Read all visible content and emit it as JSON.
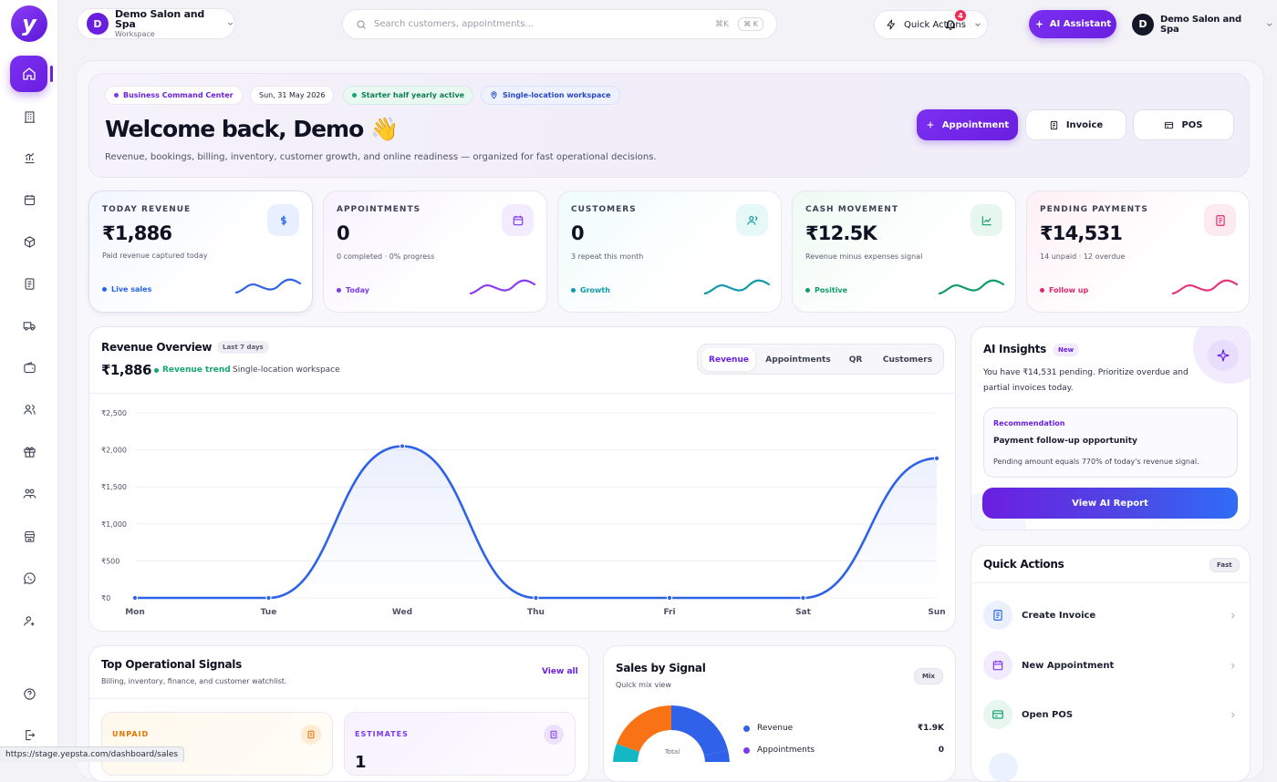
{
  "brand": {
    "logo_letter": "y",
    "accent": "#6a1fe0"
  },
  "workspace": {
    "avatar": "D",
    "name": "Demo Salon and Spa",
    "type": "Workspace"
  },
  "search": {
    "placeholder": "Search customers, appointments...",
    "shortcut": "⌘K",
    "shortcut_badge": "⌘ K"
  },
  "topbar": {
    "quick_actions": "Quick Actions",
    "notifications": "4",
    "ai_assistant": "AI Assistant",
    "user_avatar": "D",
    "user_name": "Demo Salon and Spa"
  },
  "sidebar": {
    "items": [
      "home-icon",
      "building-icon",
      "reports-icon",
      "calendar-icon",
      "package-icon",
      "document-icon",
      "truck-icon",
      "wallet-icon",
      "users-icon",
      "gift-icon",
      "team-icon",
      "store-icon",
      "whatsapp-icon",
      "user-settings-icon"
    ],
    "bottom": [
      "help-icon",
      "logout-icon"
    ]
  },
  "hero": {
    "chips": {
      "command": "Business Command Center",
      "date": "Sun, 31 May 2026",
      "plan": "Starter half yearly active",
      "location": "Single-location workspace"
    },
    "title": "Welcome back, Demo",
    "emoji": "👋",
    "subtitle": "Revenue, bookings, billing, inventory, customer growth, and online readiness — organized for fast operational decisions.",
    "buttons": {
      "appointment": "Appointment",
      "invoice": "Invoice",
      "pos": "POS"
    }
  },
  "kpis": [
    {
      "label": "TODAY REVENUE",
      "value": "₹1,886",
      "sub": "Paid revenue captured today",
      "tag": "Live sales",
      "color": "#2563eb",
      "icon": "rupee-icon"
    },
    {
      "label": "APPOINTMENTS",
      "value": "0",
      "sub": "0 completed · 0% progress",
      "tag": "Today",
      "color": "#7c3aed",
      "icon": "calendar-icon"
    },
    {
      "label": "CUSTOMERS",
      "value": "0",
      "sub": "3 repeat this month",
      "tag": "Growth",
      "color": "#0e9aa7",
      "icon": "user-icon"
    },
    {
      "label": "CASH MOVEMENT",
      "value": "₹12.5K",
      "sub": "Revenue minus expenses signal",
      "tag": "Positive",
      "color": "#0f9a6e",
      "icon": "trend-chart-icon"
    },
    {
      "label": "PENDING PAYMENTS",
      "value": "₹14,531",
      "sub": "14 unpaid · 12 overdue",
      "tag": "Follow up",
      "color": "#e0286f",
      "icon": "receipt-icon"
    }
  ],
  "revenue": {
    "title": "Revenue Overview",
    "range": "Last 7 days",
    "total": "₹1,886",
    "trend": "Revenue trend",
    "scope": "Single-location workspace",
    "tabs": [
      "Revenue",
      "Appointments",
      "QR",
      "Customers"
    ]
  },
  "chart_data": {
    "type": "line",
    "categories": [
      "Mon",
      "Tue",
      "Wed",
      "Thu",
      "Fri",
      "Sat",
      "Sun"
    ],
    "values": [
      0,
      0,
      2050,
      0,
      0,
      0,
      1886
    ],
    "ylim": [
      0,
      2500
    ],
    "yticks": [
      "₹0",
      "₹500",
      "₹1,000",
      "₹1,500",
      "₹2,000",
      "₹2,500"
    ],
    "grid": true,
    "color": "#2f62e8"
  },
  "ai": {
    "title": "AI Insights",
    "badge": "New",
    "desc": "You have ₹14,531 pending. Prioritize overdue and partial invoices today.",
    "rec_label": "Recommendation",
    "rec_title": "Payment follow-up opportunity",
    "rec_desc": "Pending amount equals 770% of today's revenue signal.",
    "button": "View AI Report"
  },
  "quick": {
    "title": "Quick Actions",
    "badge": "Fast",
    "items": [
      {
        "label": "Create Invoice",
        "color": "#2563eb",
        "bg": "#eaf0fe",
        "icon": "invoice-icon"
      },
      {
        "label": "New Appointment",
        "color": "#7c3aed",
        "bg": "#f2ebfe",
        "icon": "calendar-icon"
      },
      {
        "label": "Open POS",
        "color": "#0f9a6e",
        "bg": "#e7f7f0",
        "icon": "pos-icon"
      }
    ]
  },
  "signals": {
    "title": "Top Operational Signals",
    "subtitle": "Billing, inventory, finance, and customer watchlist.",
    "view_all": "View all",
    "cards": [
      {
        "label": "UNPAID",
        "value": "",
        "color": "#e37400"
      },
      {
        "label": "ESTIMATES",
        "value": "1",
        "color": "#7c3aed"
      }
    ]
  },
  "sales": {
    "title": "Sales by Signal",
    "subtitle": "Quick mix view",
    "badge": "Mix",
    "center": "Total",
    "legend": [
      {
        "name": "Revenue",
        "value": "₹1.9K",
        "color": "#2f62e8"
      },
      {
        "name": "Appointments",
        "value": "0",
        "color": "#7c3aed"
      }
    ]
  },
  "statusbar": {
    "url": "https://stage.yepsta.com/dashboard/sales"
  }
}
